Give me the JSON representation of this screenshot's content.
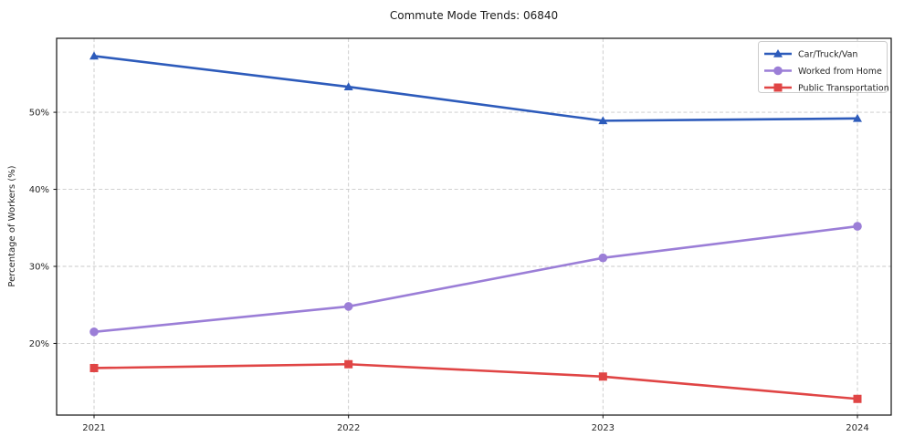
{
  "title": "Commute Mode Trends: 06840",
  "chart_data": {
    "type": "line",
    "title": "Commute Mode Trends: 06840",
    "xlabel": "",
    "ylabel": "Percentage of Workers (%)",
    "categories": [
      "2021",
      "2022",
      "2023",
      "2024"
    ],
    "series": [
      {
        "name": "Car/Truck/Van",
        "values": [
          57.3,
          53.3,
          48.9,
          49.2
        ],
        "color": "#2d5bbb",
        "marker": "triangle"
      },
      {
        "name": "Worked from Home",
        "values": [
          21.5,
          24.8,
          31.1,
          35.2
        ],
        "color": "#9b7ed7",
        "marker": "circle"
      },
      {
        "name": "Public Transportation",
        "values": [
          16.8,
          17.3,
          15.7,
          12.8
        ],
        "color": "#e04545",
        "marker": "square"
      }
    ],
    "yticks": [
      20,
      30,
      40,
      50
    ],
    "ytick_labels": [
      "20%",
      "30%",
      "40%",
      "50%"
    ],
    "ylim": [
      10.7,
      59.6
    ],
    "grid": true,
    "grid_style": "dashed",
    "legend_position": "top-right",
    "colors": {
      "background": "#ffffff",
      "grid": "#c9c9c9",
      "spine": "#111111",
      "tick": "#111111",
      "legend_border": "#cccccc",
      "legend_fill": "#ffffff"
    }
  }
}
